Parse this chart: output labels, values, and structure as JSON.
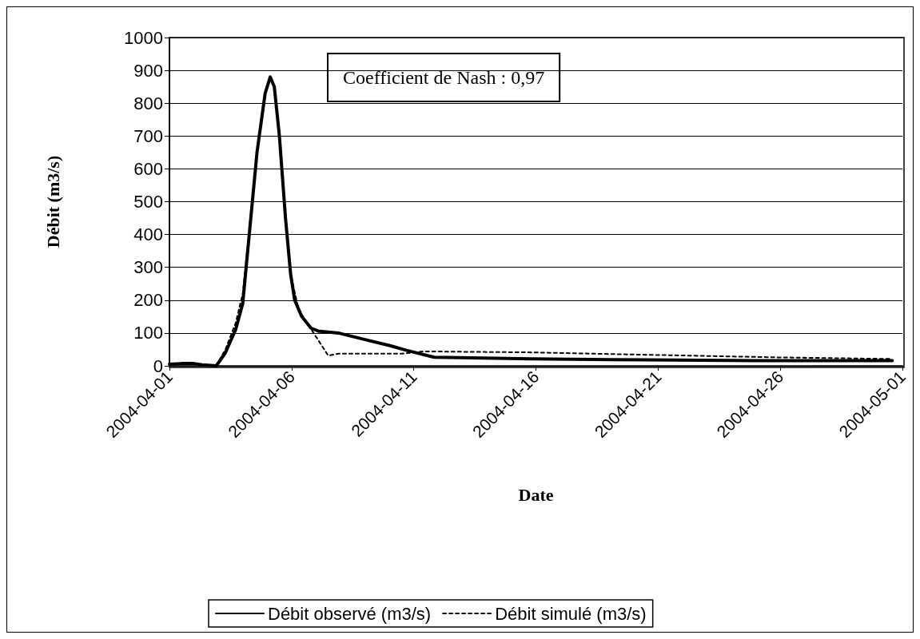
{
  "chart_data": {
    "type": "line",
    "xlabel": "Date",
    "ylabel": "Débit (m3/s)",
    "annotations": [
      "Coefficient de Nash : 0,97"
    ],
    "xlim": [
      "2004-04-01",
      "2004-05-01"
    ],
    "xticks": [
      "2004-04-01",
      "2004-04-06",
      "2004-04-11",
      "2004-04-16",
      "2004-04-21",
      "2004-04-26",
      "2004-05-01"
    ],
    "ylim": [
      0,
      1000
    ],
    "yticks": [
      0,
      100,
      200,
      300,
      400,
      500,
      600,
      700,
      800,
      900,
      1000
    ],
    "grid": "y",
    "legend": "bottom",
    "marker": "none",
    "series": [
      {
        "name": "Débit observé (m3/s)",
        "color": "#000000",
        "line_style": "solid",
        "x": [
          "2004-04-01T00:00",
          "2004-04-01T12:00",
          "2004-04-02T00:00",
          "2004-04-02T08:00",
          "2004-04-02T22:00",
          "2004-04-03T07:00",
          "2004-04-03T17:00",
          "2004-04-04T00:00",
          "2004-04-04T07:00",
          "2004-04-04T14:00",
          "2004-04-04T22:00",
          "2004-04-05T03:00",
          "2004-04-05T07:00",
          "2004-04-05T12:00",
          "2004-04-05T18:00",
          "2004-04-05T23:00",
          "2004-04-06T03:00",
          "2004-04-06T10:00",
          "2004-04-06T19:00",
          "2004-04-07T02:00",
          "2004-04-07T22:00",
          "2004-04-09T00:00",
          "2004-04-10T00:00",
          "2004-04-10T17:00",
          "2004-04-11T20:00",
          "2004-04-15T19:00",
          "2004-04-20T12:00",
          "2004-04-25T00:00",
          "2004-04-30T14:00"
        ],
        "values": [
          5,
          7,
          7,
          3,
          0,
          40,
          110,
          190,
          420,
          650,
          830,
          880,
          850,
          700,
          450,
          280,
          200,
          150,
          115,
          106,
          100,
          80,
          62,
          47,
          26,
          21,
          18,
          16,
          16
        ]
      },
      {
        "name": "Débit simulé (m3/s)",
        "color": "#000000",
        "line_style": "dashed",
        "x": [
          "2004-04-02T22:00",
          "2004-04-03T07:00",
          "2004-04-03T17:00",
          "2004-04-04T00:00",
          "2004-04-04T07:00",
          "2004-04-04T14:00",
          "2004-04-04T22:00",
          "2004-04-05T03:00",
          "2004-04-05T07:00",
          "2004-04-05T12:00",
          "2004-04-05T18:00",
          "2004-04-05T23:00",
          "2004-04-06T07:00",
          "2004-04-07T12:00",
          "2004-04-07T22:00",
          "2004-04-10T12:00",
          "2004-04-11T10:00",
          "2004-04-15T19:00",
          "2004-04-21T00:00",
          "2004-04-25T17:00",
          "2004-04-30T14:00"
        ],
        "values": [
          0,
          50,
          130,
          220,
          430,
          650,
          830,
          880,
          850,
          700,
          450,
          280,
          170,
          31,
          37,
          37,
          44,
          41,
          33,
          26,
          21
        ]
      }
    ]
  }
}
